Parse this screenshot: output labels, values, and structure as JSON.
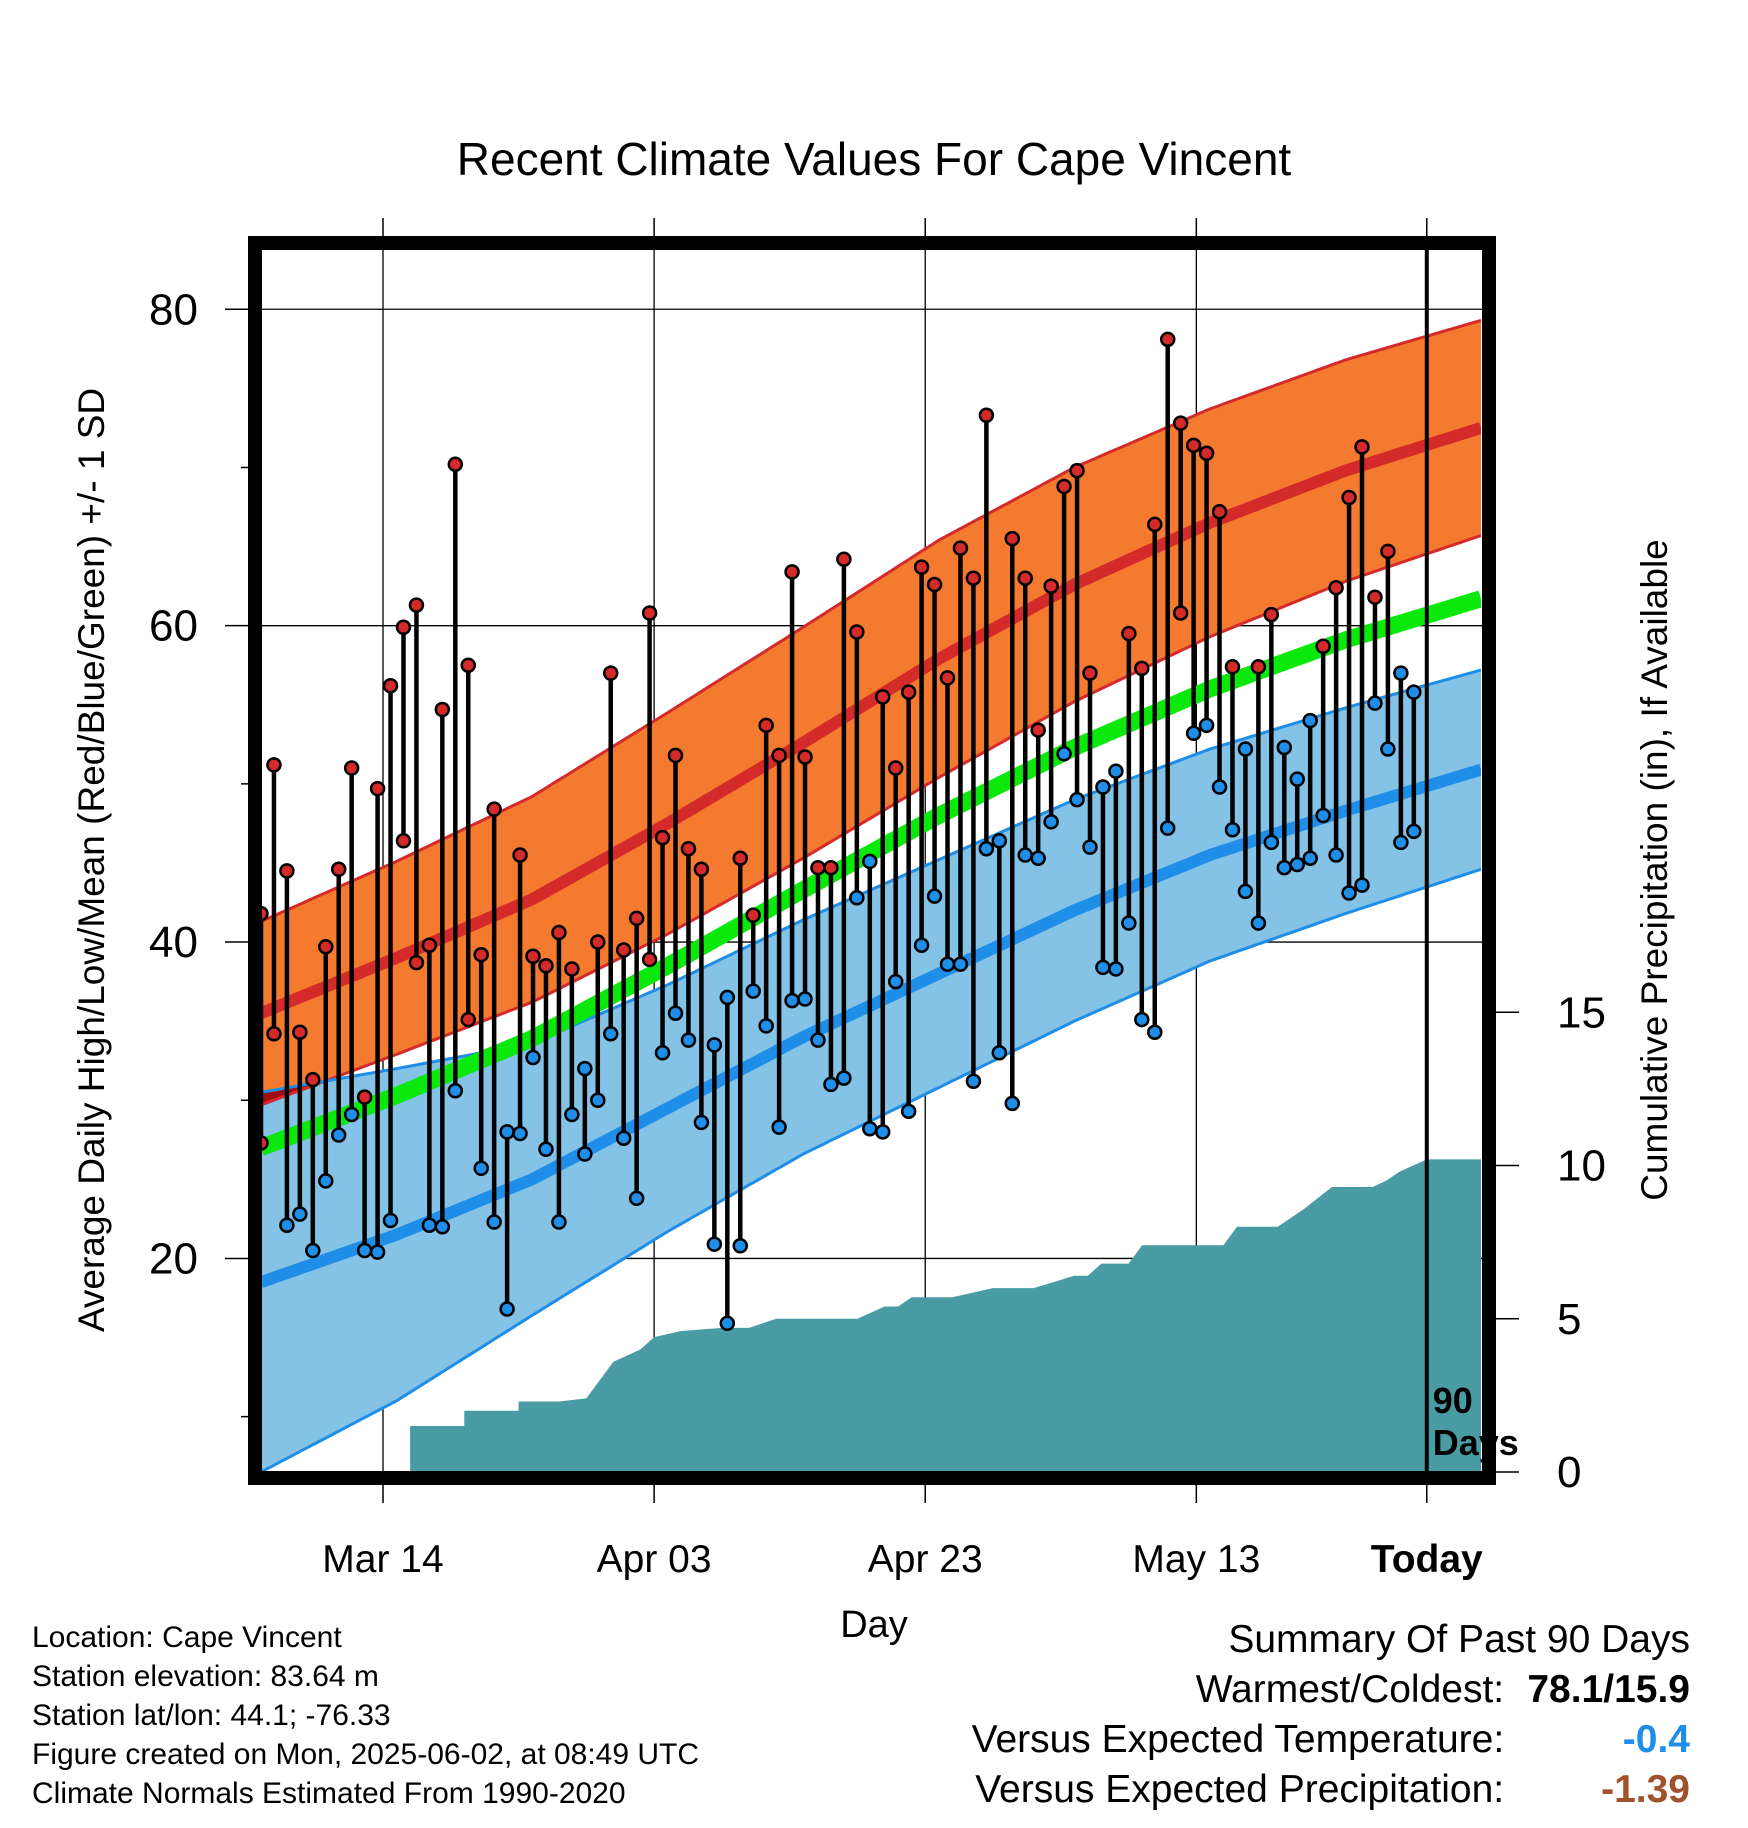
{
  "chart_data": {
    "type": "line",
    "title": "Recent Climate Values For Cape Vincent",
    "xlabel": "Day",
    "ylabel_left": "Average Daily High/Low/Mean (Red/Blue/Green) +/- 1 SD",
    "ylabel_right": "Cumulative Precipitation (in), If Available",
    "x_range_days": [
      0,
      90
    ],
    "today_day": 86,
    "today_marker_label": [
      "90",
      "Days"
    ],
    "x_ticks": [
      {
        "day": 9,
        "label": "Mar 14"
      },
      {
        "day": 29,
        "label": "Apr 03"
      },
      {
        "day": 49,
        "label": "Apr 23"
      },
      {
        "day": 69,
        "label": "May 13"
      },
      {
        "day": 86,
        "label": "Today"
      }
    ],
    "y_left": {
      "range": [
        6.5,
        84
      ],
      "major_ticks": [
        20,
        40,
        60,
        80
      ],
      "minor_ticks": [
        10,
        30,
        50,
        70
      ]
    },
    "y_right": {
      "range": [
        0,
        40
      ],
      "ticks": [
        0,
        5,
        10,
        15
      ]
    },
    "grid": true,
    "colors": {
      "high_band": "#f47a30",
      "high_mean": "#d42a2a",
      "low_band": "#84c2e6",
      "low_mean": "#1e8ee8",
      "mean": "#0be80b",
      "overlap": "#a00d0d",
      "precip": "#4a9ca4",
      "marker_high": "#d42a2a",
      "marker_low": "#1e8ee8"
    },
    "normals_x": [
      0,
      10,
      20,
      30,
      40,
      50,
      60,
      70,
      80,
      90
    ],
    "normal_high": [
      35.5,
      39.0,
      42.7,
      47.5,
      52.6,
      57.9,
      62.6,
      66.5,
      69.8,
      72.5
    ],
    "normal_high_sd": [
      5.8,
      6.1,
      6.5,
      7.0,
      7.3,
      7.5,
      7.4,
      7.2,
      7.0,
      6.8
    ],
    "normal_low": [
      18.5,
      21.5,
      25.0,
      29.5,
      34.0,
      38.0,
      42.0,
      45.5,
      48.3,
      50.9
    ],
    "normal_low_sd": [
      12.0,
      10.5,
      8.6,
      7.8,
      7.4,
      7.2,
      7.0,
      6.7,
      6.5,
      6.3
    ],
    "normal_mean": [
      27.0,
      30.3,
      33.9,
      38.5,
      43.3,
      48.0,
      52.3,
      56.0,
      59.1,
      61.7
    ],
    "daily_high": [
      41.8,
      51.2,
      44.5,
      34.3,
      31.3,
      39.7,
      44.6,
      51.0,
      30.2,
      49.7,
      56.2,
      59.9,
      61.3,
      39.8,
      54.7,
      70.2,
      57.5,
      39.2,
      48.4,
      28.0,
      45.5,
      39.1,
      38.5,
      40.6,
      38.3,
      32.0,
      40.0,
      57.0,
      39.5,
      41.5,
      60.8,
      46.6,
      51.8,
      45.9,
      44.6,
      33.5,
      36.5,
      45.3,
      41.7,
      53.7,
      51.8,
      63.4,
      51.7,
      44.7,
      44.7,
      64.2,
      59.6,
      45.1,
      55.5,
      51.0,
      55.8,
      63.7,
      62.6,
      56.7,
      64.9,
      63.0,
      73.3,
      46.4,
      65.5,
      63.0,
      53.4,
      62.5,
      68.8,
      69.8,
      57.0,
      49.8,
      50.8,
      59.5,
      57.3,
      66.4,
      78.1,
      72.8,
      71.4,
      70.9,
      67.2,
      57.4,
      52.2,
      57.4,
      60.7,
      52.3,
      50.3,
      54.0,
      58.7,
      62.4,
      68.1,
      71.3,
      61.8,
      64.7,
      57.0,
      55.8
    ],
    "daily_low": [
      27.3,
      34.2,
      22.1,
      22.8,
      20.5,
      24.9,
      27.8,
      29.1,
      20.5,
      20.4,
      22.4,
      46.4,
      38.7,
      22.1,
      22.0,
      30.6,
      35.1,
      25.7,
      22.3,
      16.8,
      27.9,
      32.7,
      26.9,
      22.3,
      29.1,
      26.6,
      30.0,
      34.2,
      27.6,
      23.8,
      38.9,
      33.0,
      35.5,
      33.8,
      28.6,
      20.9,
      15.9,
      20.8,
      36.9,
      34.7,
      28.3,
      36.3,
      36.4,
      33.8,
      31.0,
      31.4,
      42.8,
      28.2,
      28.0,
      37.5,
      29.3,
      39.8,
      42.9,
      38.6,
      38.6,
      31.2,
      45.9,
      33.0,
      29.8,
      45.5,
      45.3,
      47.6,
      51.9,
      49.0,
      46.0,
      38.4,
      38.3,
      41.2,
      35.1,
      34.3,
      47.2,
      60.8,
      53.2,
      53.7,
      49.8,
      47.1,
      43.2,
      41.2,
      46.3,
      44.7,
      44.9,
      45.3,
      48.0,
      45.5,
      43.1,
      43.6,
      55.1,
      52.2,
      46.3,
      47.0
    ],
    "precip_cumulative": [
      [
        0,
        0
      ],
      [
        11,
        0
      ],
      [
        11,
        1.5
      ],
      [
        15,
        1.5
      ],
      [
        15,
        2.0
      ],
      [
        19,
        2.0
      ],
      [
        19,
        2.3
      ],
      [
        22,
        2.3
      ],
      [
        24,
        2.4
      ],
      [
        26,
        3.6
      ],
      [
        28,
        4.0
      ],
      [
        29,
        4.4
      ],
      [
        31,
        4.6
      ],
      [
        34,
        4.7
      ],
      [
        36,
        4.7
      ],
      [
        38,
        5.0
      ],
      [
        44,
        5.0
      ],
      [
        46,
        5.4
      ],
      [
        47,
        5.4
      ],
      [
        48,
        5.7
      ],
      [
        51,
        5.7
      ],
      [
        54,
        6.0
      ],
      [
        57,
        6.0
      ],
      [
        60,
        6.4
      ],
      [
        61,
        6.4
      ],
      [
        62,
        6.8
      ],
      [
        64,
        6.8
      ],
      [
        65,
        7.4
      ],
      [
        71,
        7.4
      ],
      [
        72,
        8.0
      ],
      [
        75,
        8.0
      ],
      [
        76,
        8.3
      ],
      [
        77,
        8.6
      ],
      [
        79,
        9.3
      ],
      [
        82,
        9.3
      ],
      [
        83,
        9.5
      ],
      [
        84,
        9.8
      ],
      [
        86,
        10.2
      ],
      [
        90,
        10.2
      ]
    ]
  },
  "footer": {
    "location": "Location: Cape Vincent",
    "elevation": "Station elevation: 83.64 m",
    "latlon": "Station lat/lon: 44.1; -76.33",
    "created": "Figure created on Mon, 2025-06-02, at 08:49 UTC",
    "normals": "Climate Normals Estimated From 1990-2020"
  },
  "summary": {
    "title": "Summary Of Past 90 Days",
    "warm_cold_label": "Warmest/Coldest:",
    "warm_cold_value": "78.1/15.9",
    "temp_label": "Versus Expected Temperature:",
    "temp_value": "-0.4",
    "temp_color": "#1e8ee8",
    "precip_label": "Versus Expected Precipitation:",
    "precip_value": "-1.39",
    "precip_color": "#a0522d"
  }
}
